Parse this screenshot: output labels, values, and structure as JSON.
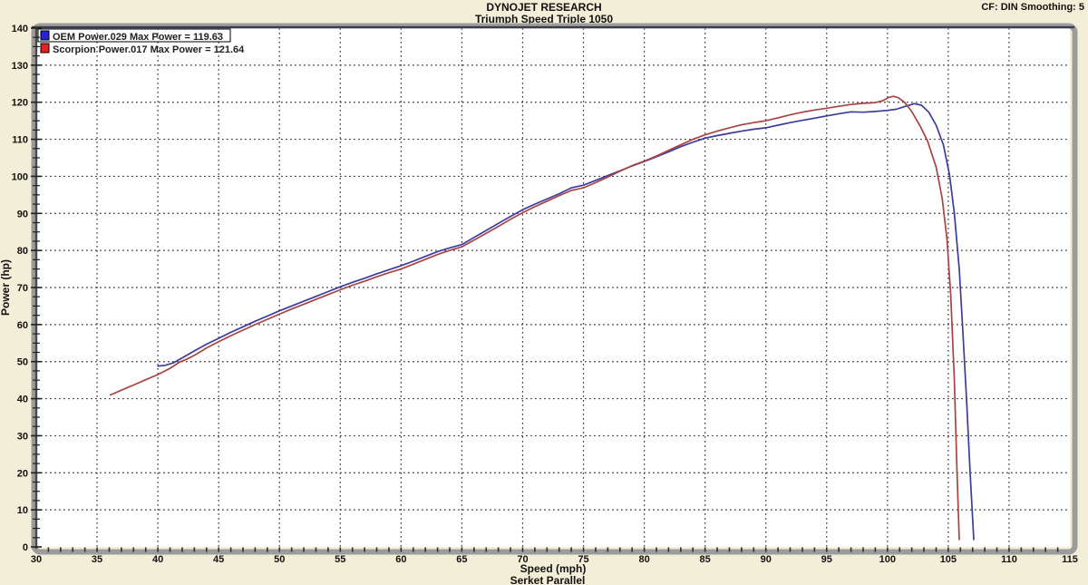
{
  "header": {
    "title": "DYNOJET RESEARCH",
    "subtitle": "Triumph Speed Triple 1050",
    "corner_info": "CF: DIN  Smoothing: 5"
  },
  "footer": {
    "note": "Serket Parallel"
  },
  "colors": {
    "page_background": "#f3eed8",
    "plot_background": "#fefefe",
    "grid": "#3d3d3d",
    "frame_light": "#9c9c9c",
    "frame_dark": "#3a3a48",
    "tick": "#222222",
    "text": "#111111"
  },
  "chart_data": {
    "type": "line",
    "title": "DYNOJET RESEARCH",
    "subtitle": "Triumph Speed Triple 1050",
    "xlabel": "Speed (mph)",
    "ylabel": "Power (hp)",
    "xlim": [
      30,
      115
    ],
    "ylim": [
      0,
      140
    ],
    "x_ticks": [
      30,
      35,
      40,
      45,
      50,
      55,
      60,
      65,
      70,
      75,
      80,
      85,
      90,
      95,
      100,
      105,
      110,
      115
    ],
    "y_ticks": [
      0,
      10,
      20,
      30,
      40,
      50,
      60,
      70,
      80,
      90,
      100,
      110,
      120,
      130,
      140
    ],
    "x_minor_step": 1,
    "y_minor_step": 2.5,
    "grid": "dotted",
    "legend_position": "top-left",
    "series": [
      {
        "name": "OEM Power.029",
        "legend": "OEM Power.029 Max Power = 119.63",
        "max_power": 119.63,
        "color": "#3c3c9c",
        "swatch": "#2525d8",
        "selected": true,
        "points": [
          [
            40,
            48.8
          ],
          [
            40.6,
            49.0
          ],
          [
            41.3,
            49.7
          ],
          [
            42,
            51.0
          ],
          [
            43,
            52.9
          ],
          [
            44,
            54.7
          ],
          [
            45,
            56.3
          ],
          [
            46,
            57.9
          ],
          [
            47,
            59.4
          ],
          [
            48,
            60.9
          ],
          [
            49,
            62.3
          ],
          [
            50,
            63.7
          ],
          [
            51,
            65.0
          ],
          [
            52,
            66.3
          ],
          [
            53,
            67.6
          ],
          [
            54,
            68.9
          ],
          [
            55,
            70.2
          ],
          [
            56,
            71.4
          ],
          [
            57,
            72.5
          ],
          [
            58,
            73.7
          ],
          [
            59,
            74.8
          ],
          [
            60,
            75.9
          ],
          [
            61,
            77.1
          ],
          [
            62,
            78.4
          ],
          [
            63,
            79.7
          ],
          [
            64,
            80.7
          ],
          [
            65,
            81.6
          ],
          [
            66,
            83.5
          ],
          [
            67,
            85.4
          ],
          [
            68,
            87.3
          ],
          [
            69,
            89.2
          ],
          [
            70,
            91.0
          ],
          [
            71,
            92.5
          ],
          [
            72,
            93.9
          ],
          [
            73,
            95.3
          ],
          [
            74,
            96.9
          ],
          [
            75,
            97.6
          ],
          [
            76,
            98.9
          ],
          [
            77,
            100.2
          ],
          [
            78,
            101.5
          ],
          [
            79,
            102.8
          ],
          [
            80,
            104.0
          ],
          [
            81,
            105.3
          ],
          [
            82,
            106.6
          ],
          [
            83,
            108.0
          ],
          [
            84,
            109.2
          ],
          [
            85,
            110.3
          ],
          [
            86,
            111.0
          ],
          [
            87,
            111.6
          ],
          [
            88,
            112.2
          ],
          [
            89,
            112.7
          ],
          [
            90,
            113.1
          ],
          [
            91,
            113.8
          ],
          [
            92,
            114.5
          ],
          [
            93,
            115.1
          ],
          [
            94,
            115.7
          ],
          [
            95,
            116.3
          ],
          [
            96,
            116.9
          ],
          [
            97,
            117.4
          ],
          [
            98,
            117.3
          ],
          [
            99,
            117.5
          ],
          [
            100,
            117.8
          ],
          [
            100.7,
            118.1
          ],
          [
            101.4,
            118.8
          ],
          [
            102.2,
            119.6
          ],
          [
            102.8,
            119.2
          ],
          [
            103.4,
            117.3
          ],
          [
            104,
            113.8
          ],
          [
            104.6,
            108.5
          ],
          [
            105.1,
            100.5
          ],
          [
            105.5,
            90
          ],
          [
            105.9,
            75
          ],
          [
            106.2,
            58
          ],
          [
            106.5,
            40
          ],
          [
            106.8,
            20
          ],
          [
            107.1,
            2
          ]
        ]
      },
      {
        "name": "Scorpion Power.017",
        "legend": "Scorpion Power.017 Max Power = 121.64",
        "max_power": 121.64,
        "color": "#a84444",
        "swatch": "#e02222",
        "selected": false,
        "points": [
          [
            36.1,
            41.0
          ],
          [
            37,
            42.3
          ],
          [
            38,
            43.7
          ],
          [
            39,
            45.1
          ],
          [
            40,
            46.5
          ],
          [
            41,
            48.2
          ],
          [
            41.8,
            49.9
          ],
          [
            42.4,
            50.7
          ],
          [
            43,
            51.7
          ],
          [
            44,
            53.7
          ],
          [
            45,
            55.4
          ],
          [
            46,
            57.0
          ],
          [
            47,
            58.5
          ],
          [
            48,
            60.0
          ],
          [
            49,
            61.4
          ],
          [
            50,
            62.8
          ],
          [
            51,
            64.2
          ],
          [
            52,
            65.5
          ],
          [
            53,
            66.8
          ],
          [
            54,
            68.1
          ],
          [
            55,
            69.4
          ],
          [
            56,
            70.6
          ],
          [
            57,
            71.7
          ],
          [
            58,
            72.9
          ],
          [
            59,
            74.0
          ],
          [
            60,
            75.0
          ],
          [
            61,
            76.3
          ],
          [
            62,
            77.6
          ],
          [
            63,
            78.9
          ],
          [
            64,
            80.0
          ],
          [
            65,
            81.0
          ],
          [
            66,
            82.8
          ],
          [
            67,
            84.6
          ],
          [
            68,
            86.5
          ],
          [
            69,
            88.4
          ],
          [
            70,
            90.2
          ],
          [
            71,
            91.8
          ],
          [
            72,
            93.3
          ],
          [
            73,
            94.8
          ],
          [
            74,
            96.2
          ],
          [
            75,
            96.9
          ],
          [
            76,
            98.3
          ],
          [
            77,
            99.8
          ],
          [
            78,
            101.4
          ],
          [
            79,
            102.9
          ],
          [
            80,
            104.1
          ],
          [
            81,
            105.5
          ],
          [
            82,
            107.0
          ],
          [
            83,
            108.5
          ],
          [
            84,
            110.0
          ],
          [
            85,
            111.2
          ],
          [
            86,
            112.2
          ],
          [
            87,
            113.1
          ],
          [
            88,
            113.9
          ],
          [
            89,
            114.5
          ],
          [
            90,
            115.0
          ],
          [
            91,
            115.8
          ],
          [
            92,
            116.6
          ],
          [
            93,
            117.3
          ],
          [
            94,
            117.9
          ],
          [
            95,
            118.4
          ],
          [
            96,
            118.9
          ],
          [
            97,
            119.4
          ],
          [
            98,
            119.7
          ],
          [
            99,
            119.9
          ],
          [
            99.6,
            120.4
          ],
          [
            100.1,
            121.3
          ],
          [
            100.5,
            121.6
          ],
          [
            100.9,
            121.2
          ],
          [
            101.4,
            120.0
          ],
          [
            102,
            117.5
          ],
          [
            102.7,
            113.5
          ],
          [
            103.3,
            109.5
          ],
          [
            104,
            102.5
          ],
          [
            104.5,
            94
          ],
          [
            104.9,
            83
          ],
          [
            105.2,
            68
          ],
          [
            105.5,
            45
          ],
          [
            105.7,
            22
          ],
          [
            105.9,
            2
          ]
        ]
      }
    ]
  }
}
